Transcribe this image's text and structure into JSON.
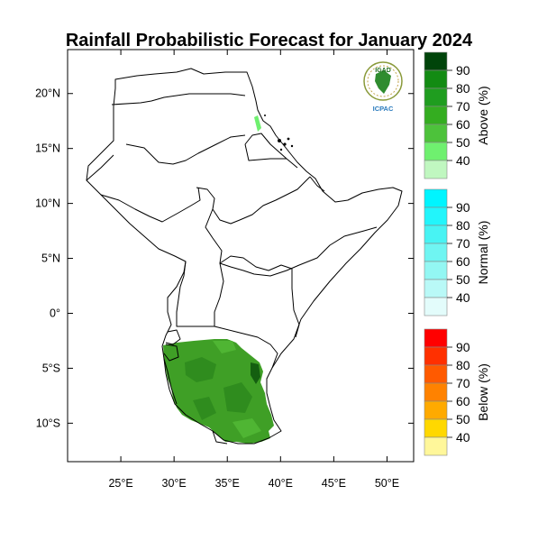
{
  "title": "Rainfall Probabilistic Forecast for January 2024",
  "logo": {
    "text_top": "IGAD",
    "text_bottom": "ICPAC"
  },
  "x_axis": {
    "ticks": [
      {
        "lon": 25,
        "label": "25°E"
      },
      {
        "lon": 30,
        "label": "30°E"
      },
      {
        "lon": 35,
        "label": "35°E"
      },
      {
        "lon": 40,
        "label": "40°E"
      },
      {
        "lon": 45,
        "label": "45°E"
      },
      {
        "lon": 50,
        "label": "50°E"
      }
    ],
    "range": [
      20.0,
      52.5
    ]
  },
  "y_axis": {
    "ticks": [
      {
        "lat": 20,
        "label": "20°N"
      },
      {
        "lat": 15,
        "label": "15°N"
      },
      {
        "lat": 10,
        "label": "10°N"
      },
      {
        "lat": 5,
        "label": "5°N"
      },
      {
        "lat": 0,
        "label": "0°"
      },
      {
        "lat": -5,
        "label": "5°S"
      },
      {
        "lat": -10,
        "label": "10°S"
      }
    ],
    "range": [
      -13.5,
      24.0
    ]
  },
  "colorbars": [
    {
      "name": "Above (%)",
      "labels": [
        "90",
        "80",
        "70",
        "60",
        "50",
        "40"
      ],
      "colors": [
        "#00440a",
        "#138b13",
        "#1f9d1f",
        "#34ad20",
        "#4dc23b",
        "#6ff06f",
        "#c0f7c0"
      ]
    },
    {
      "name": "Normal (%)",
      "labels": [
        "90",
        "80",
        "70",
        "60",
        "50",
        "40"
      ],
      "colors": [
        "#00f5ff",
        "#22f5fb",
        "#48f3f3",
        "#6ff5f2",
        "#93f7f3",
        "#b9f9f7",
        "#e3fcfb"
      ]
    },
    {
      "name": "Below (%)",
      "labels": [
        "90",
        "80",
        "70",
        "60",
        "50",
        "40"
      ],
      "colors": [
        "#ff0000",
        "#ff3000",
        "#ff5a00",
        "#ff8200",
        "#ffaa00",
        "#ffd800",
        "#fff79a"
      ]
    }
  ],
  "forecast_colors": {
    "base": "#3f9f26",
    "dark": "#2f8c1e",
    "light": "#4fb533",
    "lightest": "#6ff06f",
    "deep": "#145f10"
  }
}
